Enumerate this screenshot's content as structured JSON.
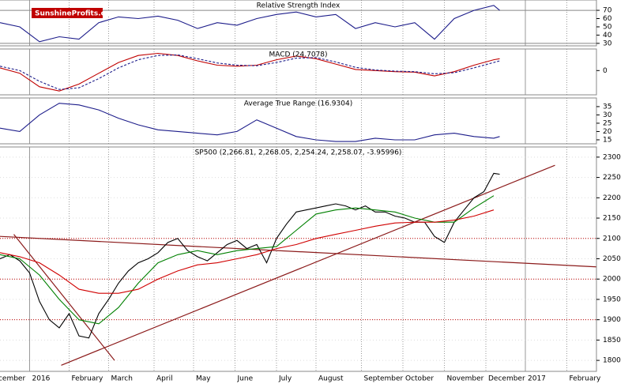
{
  "logo": "SunshineProfits.com",
  "chart_data": [
    {
      "type": "line",
      "title": "Relative Strength Index",
      "ylim": [
        27,
        82.5
      ],
      "yticks": [
        30,
        40,
        50,
        60,
        70
      ],
      "hlines": [
        70,
        30
      ],
      "series": [
        {
          "name": "RSI",
          "color": "#1c1c8a",
          "x": [
            -15,
            -5,
            5,
            15,
            25,
            35,
            45,
            55,
            65,
            75,
            85,
            95,
            105,
            115,
            125,
            135,
            145,
            155,
            165,
            175,
            185,
            195,
            205,
            215,
            225,
            235,
            238
          ],
          "values": [
            55,
            50,
            32,
            38,
            35,
            55,
            62,
            60,
            63,
            58,
            48,
            55,
            52,
            60,
            65,
            68,
            62,
            65,
            48,
            55,
            50,
            55,
            35,
            60,
            70,
            76,
            70
          ]
        }
      ]
    },
    {
      "type": "line",
      "title": "MACD (24.7078)",
      "ylim": [
        -45,
        40
      ],
      "yticks": [
        0
      ],
      "series": [
        {
          "name": "MACD",
          "color": "#c00000",
          "x": [
            -15,
            -5,
            5,
            15,
            25,
            35,
            45,
            55,
            65,
            75,
            85,
            95,
            105,
            115,
            125,
            135,
            145,
            155,
            165,
            175,
            185,
            195,
            205,
            215,
            225,
            235,
            238
          ],
          "values": [
            5,
            -5,
            -30,
            -38,
            -25,
            -5,
            15,
            28,
            32,
            28,
            18,
            10,
            8,
            10,
            20,
            27,
            22,
            12,
            2,
            0,
            -2,
            -3,
            -10,
            -2,
            10,
            20,
            22
          ]
        },
        {
          "name": "Signal",
          "color": "#1c1c8a",
          "dashed": true,
          "x": [
            -15,
            -5,
            5,
            15,
            25,
            35,
            45,
            55,
            65,
            75,
            85,
            95,
            105,
            115,
            125,
            135,
            145,
            155,
            165,
            175,
            185,
            195,
            205,
            215,
            225,
            235,
            238
          ],
          "values": [
            8,
            0,
            -20,
            -35,
            -32,
            -15,
            5,
            20,
            28,
            29,
            22,
            14,
            10,
            9,
            15,
            23,
            24,
            16,
            6,
            1,
            -1,
            -2,
            -6,
            -4,
            5,
            15,
            18
          ]
        }
      ]
    },
    {
      "type": "line",
      "title": "Average True Range (16.9304)",
      "ylim": [
        12.6,
        40.2
      ],
      "yticks": [
        15,
        20,
        25,
        30,
        35
      ],
      "series": [
        {
          "name": "ATR",
          "color": "#1c1c8a",
          "x": [
            -15,
            -5,
            5,
            15,
            25,
            35,
            45,
            55,
            65,
            75,
            85,
            95,
            105,
            115,
            125,
            135,
            145,
            155,
            165,
            175,
            185,
            195,
            205,
            215,
            225,
            235,
            238
          ],
          "values": [
            22,
            20,
            30,
            37,
            36,
            33,
            28,
            24,
            21,
            20,
            19,
            18,
            20,
            27,
            22,
            17,
            15,
            14,
            14,
            16,
            15,
            15,
            18,
            19,
            17,
            16,
            17
          ]
        }
      ]
    },
    {
      "type": "line",
      "title": "SP500 (2,266.81, 2,268.05, 2,254.24, 2,258.07, -3.95996)",
      "ylim": [
        1773,
        2325
      ],
      "yticks": [
        1800,
        1850,
        1900,
        1950,
        2000,
        2050,
        2100,
        2150,
        2200,
        2250,
        2300
      ],
      "xlim": [
        -15,
        287
      ],
      "xticks": [
        {
          "value": -22,
          "label": "December"
        },
        {
          "value": 0,
          "label": "2016"
        },
        {
          "value": 20,
          "label": "February"
        },
        {
          "value": 40,
          "label": "March"
        },
        {
          "value": 63,
          "label": "April"
        },
        {
          "value": 83,
          "label": "May"
        },
        {
          "value": 104,
          "label": "June"
        },
        {
          "value": 125,
          "label": "July"
        },
        {
          "value": 145,
          "label": "August"
        },
        {
          "value": 168,
          "label": "September"
        },
        {
          "value": 189,
          "label": "October"
        },
        {
          "value": 210,
          "label": "November"
        },
        {
          "value": 231,
          "label": "December"
        },
        {
          "value": 251,
          "label": "2017"
        },
        {
          "value": 272,
          "label": "February"
        }
      ],
      "hlines": [
        2100,
        2000,
        1900
      ],
      "lines": [
        {
          "color": "#8b1a1a",
          "x": [
            -15,
            287
          ],
          "values": [
            2105,
            2030
          ]
        },
        {
          "color": "#8b1a1a",
          "x": [
            16,
            266
          ],
          "values": [
            1788,
            2280
          ]
        },
        {
          "color": "#8b1a1a",
          "x": [
            -8,
            43
          ],
          "values": [
            2110,
            1800
          ]
        }
      ],
      "series": [
        {
          "name": "SP500",
          "color": "#000000",
          "x": [
            -15,
            -10,
            -5,
            0,
            5,
            10,
            15,
            20,
            25,
            30,
            35,
            40,
            45,
            50,
            55,
            60,
            65,
            70,
            75,
            80,
            85,
            90,
            95,
            100,
            105,
            110,
            115,
            120,
            125,
            130,
            135,
            140,
            145,
            150,
            155,
            160,
            165,
            170,
            175,
            180,
            185,
            190,
            195,
            200,
            205,
            210,
            215,
            220,
            225,
            230,
            235,
            238
          ],
          "values": [
            2050,
            2060,
            2045,
            2015,
            1945,
            1900,
            1880,
            1915,
            1860,
            1855,
            1915,
            1950,
            1990,
            2020,
            2040,
            2050,
            2065,
            2090,
            2100,
            2070,
            2055,
            2045,
            2065,
            2085,
            2095,
            2075,
            2085,
            2040,
            2100,
            2135,
            2165,
            2170,
            2175,
            2180,
            2185,
            2180,
            2170,
            2180,
            2165,
            2165,
            2155,
            2150,
            2140,
            2140,
            2105,
            2090,
            2140,
            2170,
            2200,
            2215,
            2260,
            2258
          ]
        },
        {
          "name": "MA50",
          "color": "#008000",
          "x": [
            -15,
            -5,
            5,
            15,
            25,
            35,
            45,
            55,
            65,
            75,
            85,
            95,
            105,
            115,
            125,
            135,
            145,
            155,
            165,
            175,
            185,
            195,
            205,
            215,
            225,
            235
          ],
          "values": [
            2060,
            2050,
            2010,
            1950,
            1900,
            1890,
            1930,
            1990,
            2040,
            2060,
            2070,
            2060,
            2070,
            2075,
            2080,
            2120,
            2160,
            2170,
            2175,
            2170,
            2165,
            2150,
            2140,
            2140,
            2175,
            2205
          ]
        },
        {
          "name": "MA200",
          "color": "#d00000",
          "x": [
            -15,
            -5,
            5,
            15,
            25,
            35,
            45,
            55,
            65,
            75,
            85,
            95,
            105,
            115,
            125,
            135,
            145,
            155,
            165,
            175,
            185,
            195,
            205,
            215,
            225,
            235
          ],
          "values": [
            2065,
            2055,
            2040,
            2010,
            1975,
            1965,
            1965,
            1975,
            2000,
            2020,
            2035,
            2040,
            2050,
            2060,
            2075,
            2085,
            2100,
            2110,
            2120,
            2130,
            2138,
            2140,
            2140,
            2145,
            2155,
            2170
          ]
        }
      ]
    }
  ]
}
